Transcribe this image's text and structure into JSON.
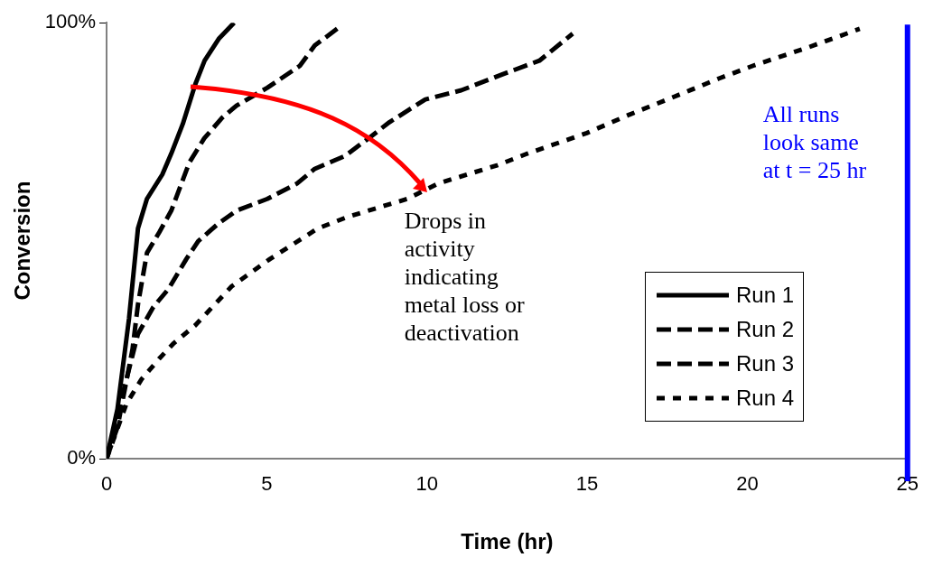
{
  "chart_data": {
    "type": "line",
    "xlabel": "Time (hr)",
    "ylabel": "Conversion",
    "xlim": [
      0,
      25
    ],
    "xticks": [
      0,
      5,
      10,
      15,
      20,
      25
    ],
    "ylim": [
      0,
      100
    ],
    "yticks": [
      {
        "value": 0,
        "label": "0%"
      },
      {
        "value": 100,
        "label": "100%"
      }
    ],
    "grid": false,
    "legend": "bottom right",
    "marker": "none",
    "series": [
      {
        "name": "Run 1",
        "color": "#000000",
        "line_style": "solid",
        "x": [
          0,
          0.34,
          0.7,
          0.98,
          1.26,
          1.74,
          2.02,
          2.38,
          2.77,
          3.06,
          3.5,
          3.98
        ],
        "values": [
          0,
          11.4,
          32.1,
          52.8,
          59.6,
          65.2,
          70,
          76.8,
          85.9,
          91.3,
          96.3,
          100
        ]
      },
      {
        "name": "Run 2",
        "color": "#000000",
        "line_style": "dashed",
        "x": [
          0,
          0.34,
          0.81,
          0.98,
          1.26,
          1.65,
          2.02,
          2.58,
          3.05,
          3.62,
          4.06,
          5.02,
          6.03,
          6.5,
          7.34
        ],
        "values": [
          0,
          7.2,
          25.1,
          35.4,
          47.2,
          52,
          56.9,
          67.9,
          73.5,
          78.3,
          81,
          85.1,
          90.1,
          94.8,
          99.4
        ]
      },
      {
        "name": "Run 3",
        "color": "#000000",
        "line_style": "dashed",
        "x": [
          0,
          0.62,
          0.98,
          1.46,
          1.93,
          2.49,
          2.86,
          3.5,
          4.06,
          5.02,
          5.94,
          6.5,
          7.43,
          8.18,
          8.83,
          9.95,
          11.07,
          12.3,
          13.51,
          14.55
        ],
        "values": [
          0,
          18.2,
          28.6,
          34.8,
          38.9,
          45.8,
          49.9,
          54,
          56.9,
          59.6,
          63.1,
          66.5,
          69.4,
          73.5,
          77.2,
          82.4,
          84.5,
          88,
          91.3,
          97.5
        ]
      },
      {
        "name": "Run 4",
        "color": "#000000",
        "line_style": "dotted",
        "x": [
          0,
          0.62,
          1.09,
          1.65,
          2.1,
          2.77,
          3.9,
          5.1,
          6.59,
          7.54,
          9.39,
          10.34,
          12.19,
          13.14,
          14.99,
          16.31,
          17.71,
          19.11,
          20.24,
          21.92,
          23.51
        ],
        "values": [
          0,
          12.6,
          18.2,
          23,
          26.5,
          30.6,
          39.5,
          45.8,
          52.8,
          55.5,
          59.6,
          63.1,
          67.3,
          70,
          74.7,
          78.9,
          83,
          87.2,
          90.3,
          94.4,
          98.6
        ]
      }
    ],
    "ref_lines": [
      {
        "axis": "x",
        "value": 25,
        "label": "All runs look same at t = 25 hr",
        "color": "#0000ff"
      }
    ],
    "annotations": [
      {
        "text": "Drops in activity indicating metal loss or deactivation",
        "x": 10,
        "y": 61
      }
    ]
  }
}
